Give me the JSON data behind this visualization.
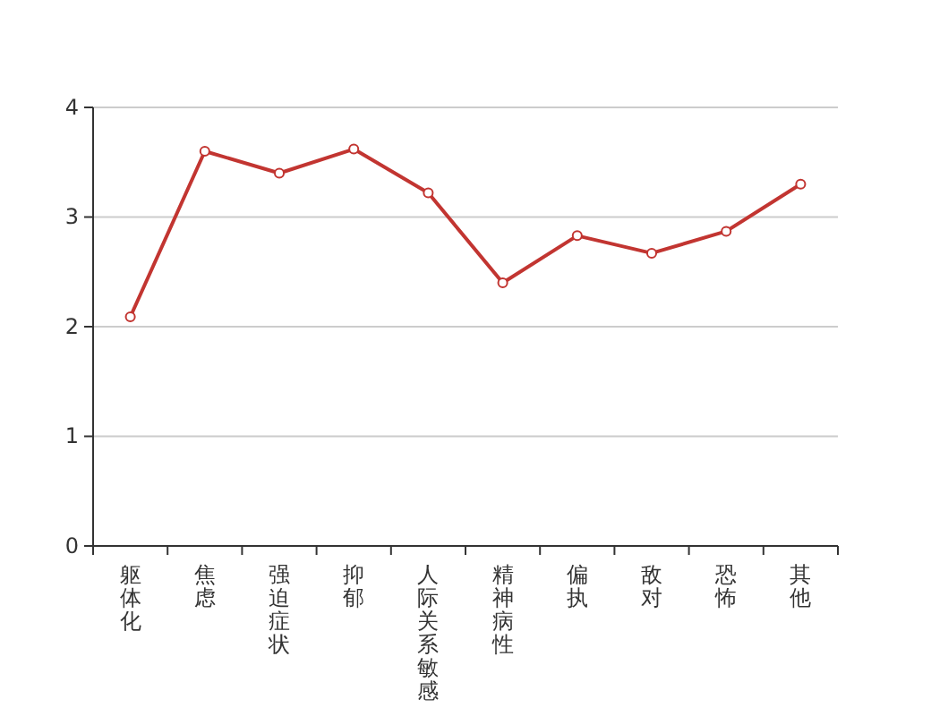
{
  "chart_data": {
    "type": "line",
    "categories": [
      "躯体化",
      "焦虑",
      "强迫症状",
      "抑郁",
      "人际关系敏感",
      "精神病性",
      "偏执",
      "敌对",
      "恐怖",
      "其他"
    ],
    "series": [
      {
        "color": "#c23531",
        "values": [
          2.09,
          3.6,
          3.4,
          3.62,
          3.22,
          2.4,
          2.83,
          2.67,
          2.87,
          3.3
        ]
      }
    ],
    "ylim": [
      0,
      4
    ],
    "yticks": [
      0,
      1,
      2,
      3,
      4
    ],
    "grid": "y",
    "marker": "circle",
    "line_style": "solid"
  }
}
